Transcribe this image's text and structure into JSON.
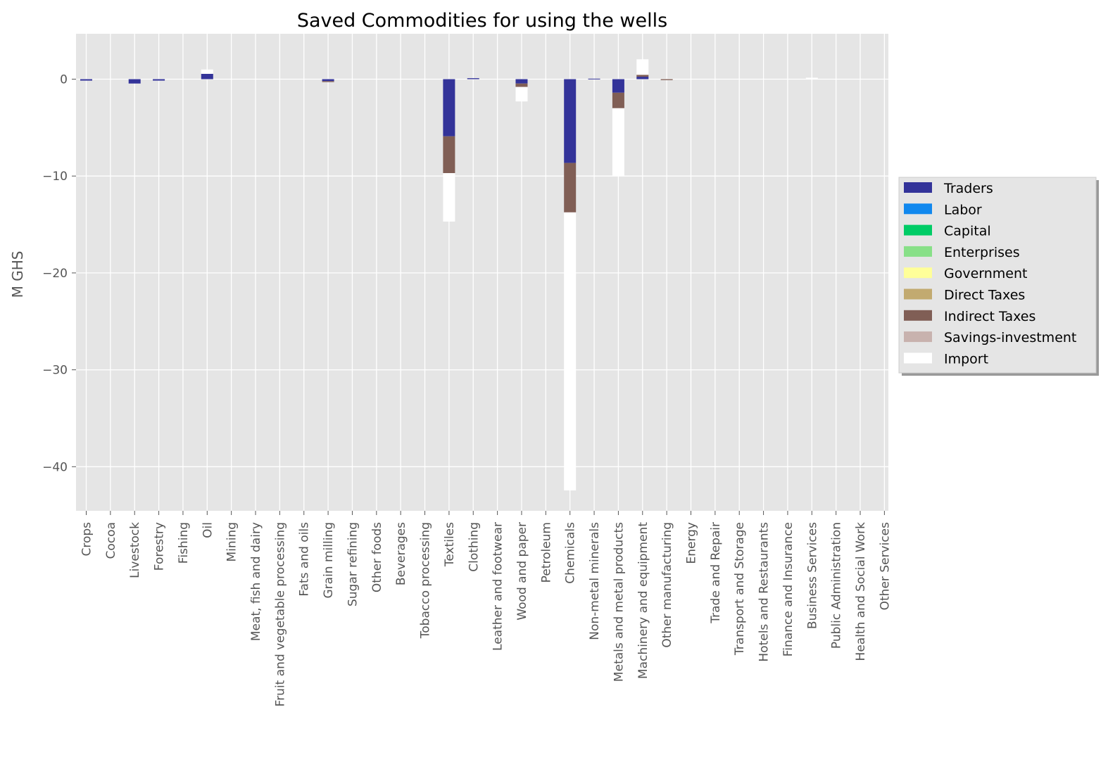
{
  "chart_data": {
    "type": "bar",
    "stacked": true,
    "title": "Saved Commodities for using the wells",
    "xlabel": "",
    "ylabel": "M GHS",
    "ylim": [
      -44.5,
      4.5
    ],
    "yticks": [
      0,
      -10,
      -20,
      -30,
      -40
    ],
    "grid": true,
    "legend_position": "right",
    "categories": [
      "Crops",
      "Cocoa",
      "Livestock",
      "Forestry",
      "Fishing",
      "Oil",
      "Mining",
      "Meat, fish and dairy",
      "Fruit and vegetable processing",
      "Fats and oils",
      "Grain milling",
      "Sugar refining",
      "Other foods",
      "Beverages",
      "Tobacco processing",
      "Textiles",
      "Clothing",
      "Leather and footwear",
      "Wood and paper",
      "Petroleum",
      "Chemicals",
      "Non-metal minerals",
      "Metals and metal products",
      "Machinery and equipment",
      "Other manufacturing",
      "Energy",
      "Trade and Repair",
      "Transport and Storage",
      "Hotels and Restaurants",
      "Finance and Insurance",
      "Business Services",
      "Public Administration",
      "Health and Social Work",
      "Other Services"
    ],
    "series": [
      {
        "name": "Traders",
        "color": "#333399",
        "values": [
          -0.15,
          0,
          -0.45,
          -0.15,
          0,
          0.55,
          0,
          0,
          0,
          0,
          -0.2,
          0,
          0,
          0,
          0,
          -5.9,
          0.1,
          0,
          -0.45,
          0,
          -8.65,
          0.05,
          -1.4,
          0.25,
          0,
          0,
          0,
          0,
          0,
          0,
          0,
          0,
          0,
          0
        ]
      },
      {
        "name": "Labor",
        "color": "#1188ee",
        "values": [
          0,
          0,
          0,
          0,
          0,
          0,
          0,
          0,
          0,
          0,
          0,
          0,
          0,
          0,
          0,
          0,
          0,
          0,
          0,
          0,
          0,
          0,
          0,
          0,
          0,
          0,
          0,
          0,
          0,
          0,
          0,
          0,
          0,
          0
        ]
      },
      {
        "name": "Capital",
        "color": "#00cc66",
        "values": [
          0,
          0,
          0,
          0,
          0,
          0,
          0,
          0,
          0,
          0,
          0,
          0,
          0,
          0,
          0,
          0,
          0,
          0,
          0,
          0,
          0,
          0,
          0,
          0,
          0,
          0,
          0,
          0,
          0,
          0,
          0,
          0,
          0,
          0
        ]
      },
      {
        "name": "Enterprises",
        "color": "#88e088",
        "values": [
          0,
          0,
          0,
          0,
          0,
          0,
          0,
          0,
          0,
          0,
          0,
          0,
          0,
          0,
          0,
          0,
          0,
          0,
          0,
          0,
          0,
          0,
          0,
          0,
          0,
          0,
          0,
          0,
          0,
          0,
          0,
          0,
          0,
          0
        ]
      },
      {
        "name": "Government",
        "color": "#ffff99",
        "values": [
          0,
          0,
          0,
          0,
          0,
          0,
          0,
          0,
          0,
          0,
          0,
          0,
          0,
          0,
          0,
          0,
          0,
          0,
          0,
          0,
          0,
          0,
          0,
          0,
          0,
          0,
          0,
          0,
          0,
          0,
          0,
          0,
          0,
          0
        ]
      },
      {
        "name": "Direct Taxes",
        "color": "#c2aa70",
        "values": [
          0,
          0,
          0,
          0,
          0,
          0,
          0,
          0,
          0,
          0,
          0,
          0,
          0,
          0,
          0,
          0,
          0,
          0,
          0,
          0,
          0,
          0,
          0,
          0,
          0,
          0,
          0,
          0,
          0,
          0,
          0,
          0,
          0,
          0
        ]
      },
      {
        "name": "Indirect Taxes",
        "color": "#805e55",
        "values": [
          0,
          0,
          0,
          0,
          0,
          0,
          0,
          0,
          0,
          0,
          -0.1,
          0,
          0,
          0,
          0,
          -3.8,
          0,
          0,
          -0.35,
          0,
          -5.1,
          0,
          -1.6,
          0.2,
          -0.1,
          0,
          0,
          0,
          0,
          0,
          0,
          0,
          0,
          0
        ]
      },
      {
        "name": "Savings-investment",
        "color": "#c8b2ae",
        "values": [
          0,
          0,
          0,
          0,
          0,
          0,
          0,
          0,
          0,
          0,
          0,
          0,
          0,
          0,
          0,
          0,
          0,
          0,
          0,
          0,
          0,
          0,
          0,
          0,
          0,
          0,
          0,
          0,
          0,
          0,
          0,
          0,
          0,
          0
        ]
      },
      {
        "name": "Import",
        "color": "#ffffff",
        "values": [
          0,
          0,
          0,
          0,
          0,
          0.45,
          0,
          0,
          0,
          0,
          0,
          0,
          0,
          0,
          0,
          -5.0,
          0,
          0,
          -1.5,
          0,
          -28.7,
          0,
          -7.0,
          1.6,
          0,
          0,
          0,
          0,
          0,
          0,
          0.15,
          0,
          0,
          0
        ]
      }
    ]
  }
}
